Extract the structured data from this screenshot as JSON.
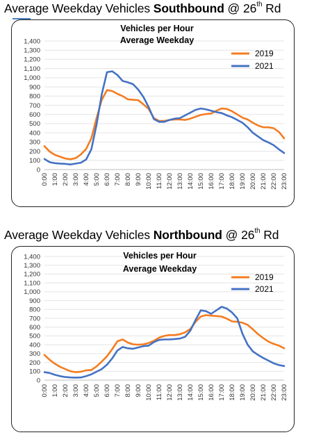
{
  "page": {
    "heading1": {
      "pre": "Average Weekday Vehicles ",
      "bold": "Southbound",
      "mid": " @ 26",
      "sup": "th",
      "post": " Rd"
    },
    "heading2": {
      "pre": "Average Weekday Vehicles ",
      "bold": "Northbound",
      "mid": " @ 26",
      "sup": "th",
      "post": " Rd"
    }
  },
  "colors": {
    "series_2019": "#F47C20",
    "series_2021": "#4472C4",
    "grid": "#e3e3e3"
  },
  "chart_data": [
    {
      "type": "line",
      "title": "Vehicles per Hour",
      "subtitle": "Average Weekday",
      "xlabel": "",
      "ylabel": "",
      "ylim": [
        0,
        1400
      ],
      "yticks": [
        0,
        100,
        200,
        300,
        400,
        500,
        600,
        700,
        800,
        900,
        1000,
        1100,
        1200,
        1300,
        1400
      ],
      "ytick_labels": [
        "0",
        "100",
        "200",
        "300",
        "400",
        "500",
        "600",
        "700",
        "800",
        "900",
        "1,000",
        "1,100",
        "1,200",
        "1,300",
        "1,400"
      ],
      "xticks": [
        0,
        1,
        2,
        3,
        4,
        5,
        6,
        7,
        8,
        9,
        10,
        11,
        12,
        13,
        14,
        15,
        16,
        17,
        18,
        19,
        20,
        21,
        22,
        23
      ],
      "xtick_labels": [
        "0:00",
        "1:00",
        "2:00",
        "3:00",
        "4:00",
        "5:00",
        "6:00",
        "7:00",
        "8:00",
        "9:00",
        "10:00",
        "11:00",
        "12:00",
        "13:00",
        "14:00",
        "15:00",
        "16:00",
        "17:00",
        "18:00",
        "19:00",
        "20:00",
        "21:00",
        "22:00",
        "23:00"
      ],
      "grid": true,
      "legend": "top-right",
      "series": [
        {
          "name": "2019",
          "x": [
            0,
            0.5,
            1,
            1.5,
            2,
            2.5,
            3,
            3.5,
            4,
            4.5,
            5,
            5.5,
            6,
            6.5,
            7,
            7.5,
            8,
            8.5,
            9,
            9.5,
            10,
            10.5,
            11,
            11.5,
            12,
            12.5,
            13,
            13.5,
            14,
            14.5,
            15,
            15.5,
            16,
            16.5,
            17,
            17.5,
            18,
            18.5,
            19,
            19.5,
            20,
            20.5,
            21,
            21.5,
            22,
            22.5,
            23
          ],
          "values": [
            255,
            195,
            160,
            140,
            120,
            112,
            125,
            165,
            225,
            340,
            560,
            760,
            865,
            855,
            825,
            800,
            765,
            760,
            755,
            710,
            660,
            560,
            530,
            530,
            540,
            545,
            545,
            540,
            555,
            575,
            595,
            605,
            610,
            640,
            665,
            660,
            635,
            600,
            565,
            545,
            510,
            480,
            460,
            460,
            450,
            410,
            340
          ]
        },
        {
          "name": "2021",
          "x": [
            0,
            0.5,
            1,
            1.5,
            2,
            2.5,
            3,
            3.5,
            4,
            4.5,
            5,
            5.5,
            6,
            6.5,
            7,
            7.5,
            8,
            8.5,
            9,
            9.5,
            10,
            10.5,
            11,
            11.5,
            12,
            12.5,
            13,
            13.5,
            14,
            14.5,
            15,
            15.5,
            16,
            16.5,
            17,
            17.5,
            18,
            18.5,
            19,
            19.5,
            20,
            20.5,
            21,
            21.5,
            22,
            22.5,
            23
          ],
          "values": [
            115,
            80,
            70,
            65,
            62,
            55,
            65,
            75,
            110,
            220,
            490,
            820,
            1060,
            1070,
            1030,
            965,
            950,
            930,
            870,
            790,
            680,
            550,
            520,
            520,
            540,
            555,
            560,
            590,
            620,
            650,
            665,
            655,
            640,
            625,
            615,
            590,
            570,
            540,
            510,
            460,
            400,
            360,
            320,
            295,
            265,
            220,
            180
          ]
        }
      ]
    },
    {
      "type": "line",
      "title": "Vehicles per Hour",
      "subtitle": "Average Weekday",
      "xlabel": "",
      "ylabel": "",
      "ylim": [
        0,
        1400
      ],
      "yticks": [
        0,
        100,
        200,
        300,
        400,
        500,
        600,
        700,
        800,
        900,
        1000,
        1100,
        1200,
        1300,
        1400
      ],
      "ytick_labels": [
        "0",
        "100",
        "200",
        "300",
        "400",
        "500",
        "600",
        "700",
        "800",
        "900",
        "1,000",
        "1,100",
        "1,200",
        "1,300",
        "1,400"
      ],
      "xticks": [
        0,
        1,
        2,
        3,
        4,
        5,
        6,
        7,
        8,
        9,
        10,
        11,
        12,
        13,
        14,
        15,
        16,
        17,
        18,
        19,
        20,
        21,
        22,
        23
      ],
      "xtick_labels": [
        "0:00",
        "1:00",
        "2:00",
        "3:00",
        "4:00",
        "5:00",
        "6:00",
        "7:00",
        "8:00",
        "9:00",
        "10:00",
        "11:00",
        "12:00",
        "13:00",
        "14:00",
        "15:00",
        "16:00",
        "17:00",
        "18:00",
        "19:00",
        "20:00",
        "21:00",
        "22:00",
        "23:00"
      ],
      "grid": true,
      "legend": "top-right",
      "series": [
        {
          "name": "2019",
          "x": [
            0,
            0.5,
            1,
            1.5,
            2,
            2.5,
            3,
            3.5,
            4,
            4.5,
            5,
            5.5,
            6,
            6.5,
            7,
            7.5,
            8,
            8.5,
            9,
            9.5,
            10,
            10.5,
            11,
            11.5,
            12,
            12.5,
            13,
            13.5,
            14,
            14.5,
            15,
            15.5,
            16,
            16.5,
            17,
            17.5,
            18,
            18.5,
            19,
            19.5,
            20,
            20.5,
            21,
            21.5,
            22,
            22.5,
            23
          ],
          "values": [
            285,
            230,
            185,
            150,
            125,
            100,
            90,
            95,
            110,
            115,
            155,
            210,
            270,
            350,
            440,
            460,
            425,
            405,
            400,
            405,
            420,
            445,
            480,
            500,
            510,
            510,
            520,
            540,
            580,
            660,
            720,
            735,
            730,
            725,
            720,
            695,
            665,
            660,
            650,
            625,
            575,
            520,
            475,
            435,
            410,
            390,
            360
          ]
        },
        {
          "name": "2021",
          "x": [
            0,
            0.5,
            1,
            1.5,
            2,
            2.5,
            3,
            3.5,
            4,
            4.5,
            5,
            5.5,
            6,
            6.5,
            7,
            7.5,
            8,
            8.5,
            9,
            9.5,
            10,
            10.5,
            11,
            11.5,
            12,
            12.5,
            13,
            13.5,
            14,
            14.5,
            15,
            15.5,
            16,
            16.5,
            17,
            17.5,
            18,
            18.5,
            19,
            19.5,
            20,
            20.5,
            21,
            21.5,
            22,
            22.5,
            23
          ],
          "values": [
            90,
            80,
            60,
            45,
            35,
            30,
            28,
            30,
            45,
            65,
            95,
            125,
            175,
            245,
            335,
            375,
            360,
            355,
            370,
            385,
            390,
            430,
            455,
            460,
            460,
            465,
            470,
            490,
            560,
            680,
            790,
            780,
            750,
            790,
            830,
            810,
            765,
            700,
            525,
            400,
            325,
            285,
            250,
            220,
            190,
            170,
            160
          ]
        }
      ]
    }
  ]
}
